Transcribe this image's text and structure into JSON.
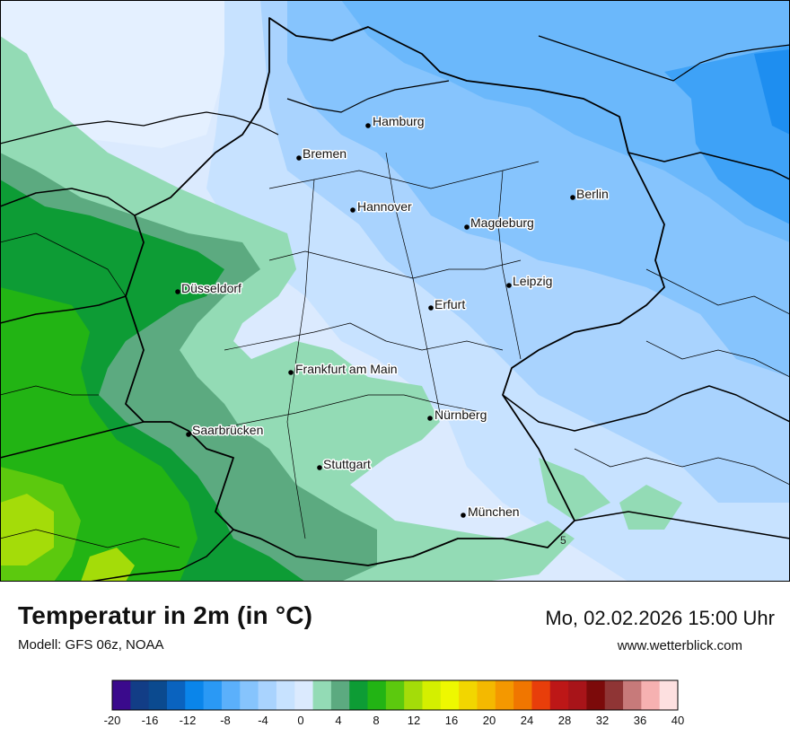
{
  "map": {
    "cities": [
      {
        "id": "hamburg",
        "label": "Hamburg"
      },
      {
        "id": "bremen",
        "label": "Bremen"
      },
      {
        "id": "berlin",
        "label": "Berlin"
      },
      {
        "id": "hannover",
        "label": "Hannover"
      },
      {
        "id": "magdeburg",
        "label": "Magdeburg"
      },
      {
        "id": "duesseldorf",
        "label": "Düsseldorf"
      },
      {
        "id": "leipzig",
        "label": "Leipzig"
      },
      {
        "id": "erfurt",
        "label": "Erfurt"
      },
      {
        "id": "frankfurt",
        "label": "Frankfurt am Main"
      },
      {
        "id": "nuernberg",
        "label": "Nürnberg"
      },
      {
        "id": "saarbruecken",
        "label": "Saarbrücken"
      },
      {
        "id": "stuttgart",
        "label": "Stuttgart"
      },
      {
        "id": "muenchen",
        "label": "München"
      }
    ],
    "contour_label": "5"
  },
  "footer": {
    "title": "Temperatur in 2m (in °C)",
    "model": "Modell: GFS 06z, NOAA",
    "datetime": "Mo, 02.02.2026 15:00 Uhr",
    "website": "www.wetterblick.com"
  },
  "legend": {
    "colors": [
      "#3a0a8c",
      "#123d86",
      "#0b4a8f",
      "#0a63bf",
      "#0a85ea",
      "#2a99f5",
      "#5bb0fb",
      "#86c4fd",
      "#a9d3fe",
      "#c7e2ff",
      "#dbeafe",
      "#93dbb5",
      "#5caa80",
      "#0d9c35",
      "#22b414",
      "#5cc90e",
      "#a4dc09",
      "#d4ef00",
      "#eef800",
      "#f2d600",
      "#f4b900",
      "#f49800",
      "#f07600",
      "#e83e0a",
      "#bd1717",
      "#a81419",
      "#7c0a0a",
      "#8f3535",
      "#c77a7a",
      "#f6b1b1",
      "#fde0e0"
    ],
    "ticks": [
      "-20",
      "-16",
      "-12",
      "-8",
      "-4",
      "0",
      "4",
      "8",
      "12",
      "16",
      "20",
      "24",
      "28",
      "32",
      "36",
      "40"
    ]
  }
}
